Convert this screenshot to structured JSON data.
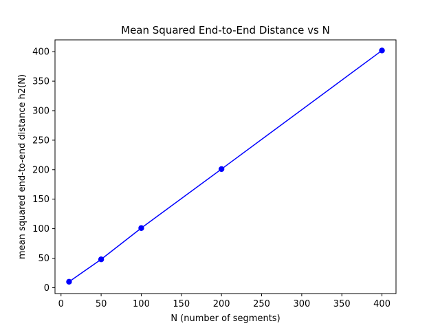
{
  "chart_data": {
    "type": "line",
    "title": "Mean Squared End-to-End Distance vs N",
    "xlabel": "N (number of segments)",
    "ylabel": "mean squared end-to-end distance h2(N)",
    "xlim": [
      -7.5,
      417.5
    ],
    "ylim": [
      -10,
      420
    ],
    "x_ticks": [
      0,
      50,
      100,
      150,
      200,
      250,
      300,
      350,
      400
    ],
    "y_ticks": [
      0,
      50,
      100,
      150,
      200,
      250,
      300,
      350,
      400
    ],
    "grid": false,
    "series": [
      {
        "x": [
          10,
          50,
          100,
          200,
          400
        ],
        "values": [
          10,
          48,
          101,
          201,
          402
        ],
        "color": "#0000ff",
        "marker": "circle"
      }
    ]
  }
}
